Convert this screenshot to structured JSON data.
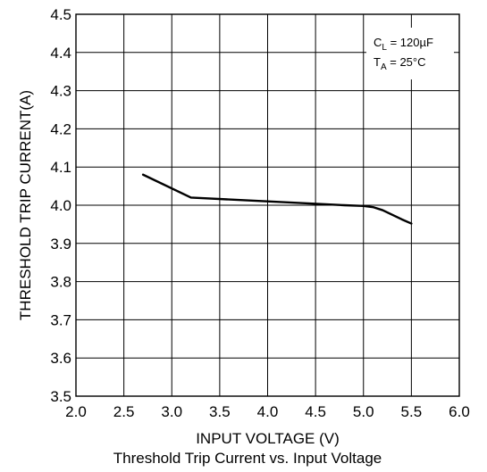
{
  "chart_data": {
    "type": "line",
    "caption": "Threshold Trip Current vs. Input Voltage",
    "xlabel": "INPUT VOLTAGE (V)",
    "ylabel": "THRESHOLD TRIP CURRENT(A)",
    "xlim": [
      2.0,
      6.0
    ],
    "ylim": [
      3.5,
      4.5
    ],
    "x_ticks": [
      "2.0",
      "2.5",
      "3.0",
      "3.5",
      "4.0",
      "4.5",
      "5.0",
      "5.5",
      "6.0"
    ],
    "y_ticks": [
      "3.5",
      "3.6",
      "3.7",
      "3.8",
      "3.9",
      "4.0",
      "4.1",
      "4.2",
      "4.3",
      "4.4",
      "4.5"
    ],
    "grid": true,
    "legend": "none",
    "annotations": [
      {
        "main": "C",
        "sub": "L",
        "rest": " = 120µF"
      },
      {
        "main": "T",
        "sub": "A",
        "rest": " = 25°C"
      }
    ],
    "series": [
      {
        "x": [
          2.7,
          3.2,
          4.0,
          4.8,
          5.0,
          5.1,
          5.2,
          5.3,
          5.4,
          5.5
        ],
        "y": [
          4.08,
          4.02,
          4.01,
          4.0,
          3.998,
          3.995,
          3.987,
          3.975,
          3.963,
          3.952
        ],
        "color": "#000000"
      }
    ]
  }
}
